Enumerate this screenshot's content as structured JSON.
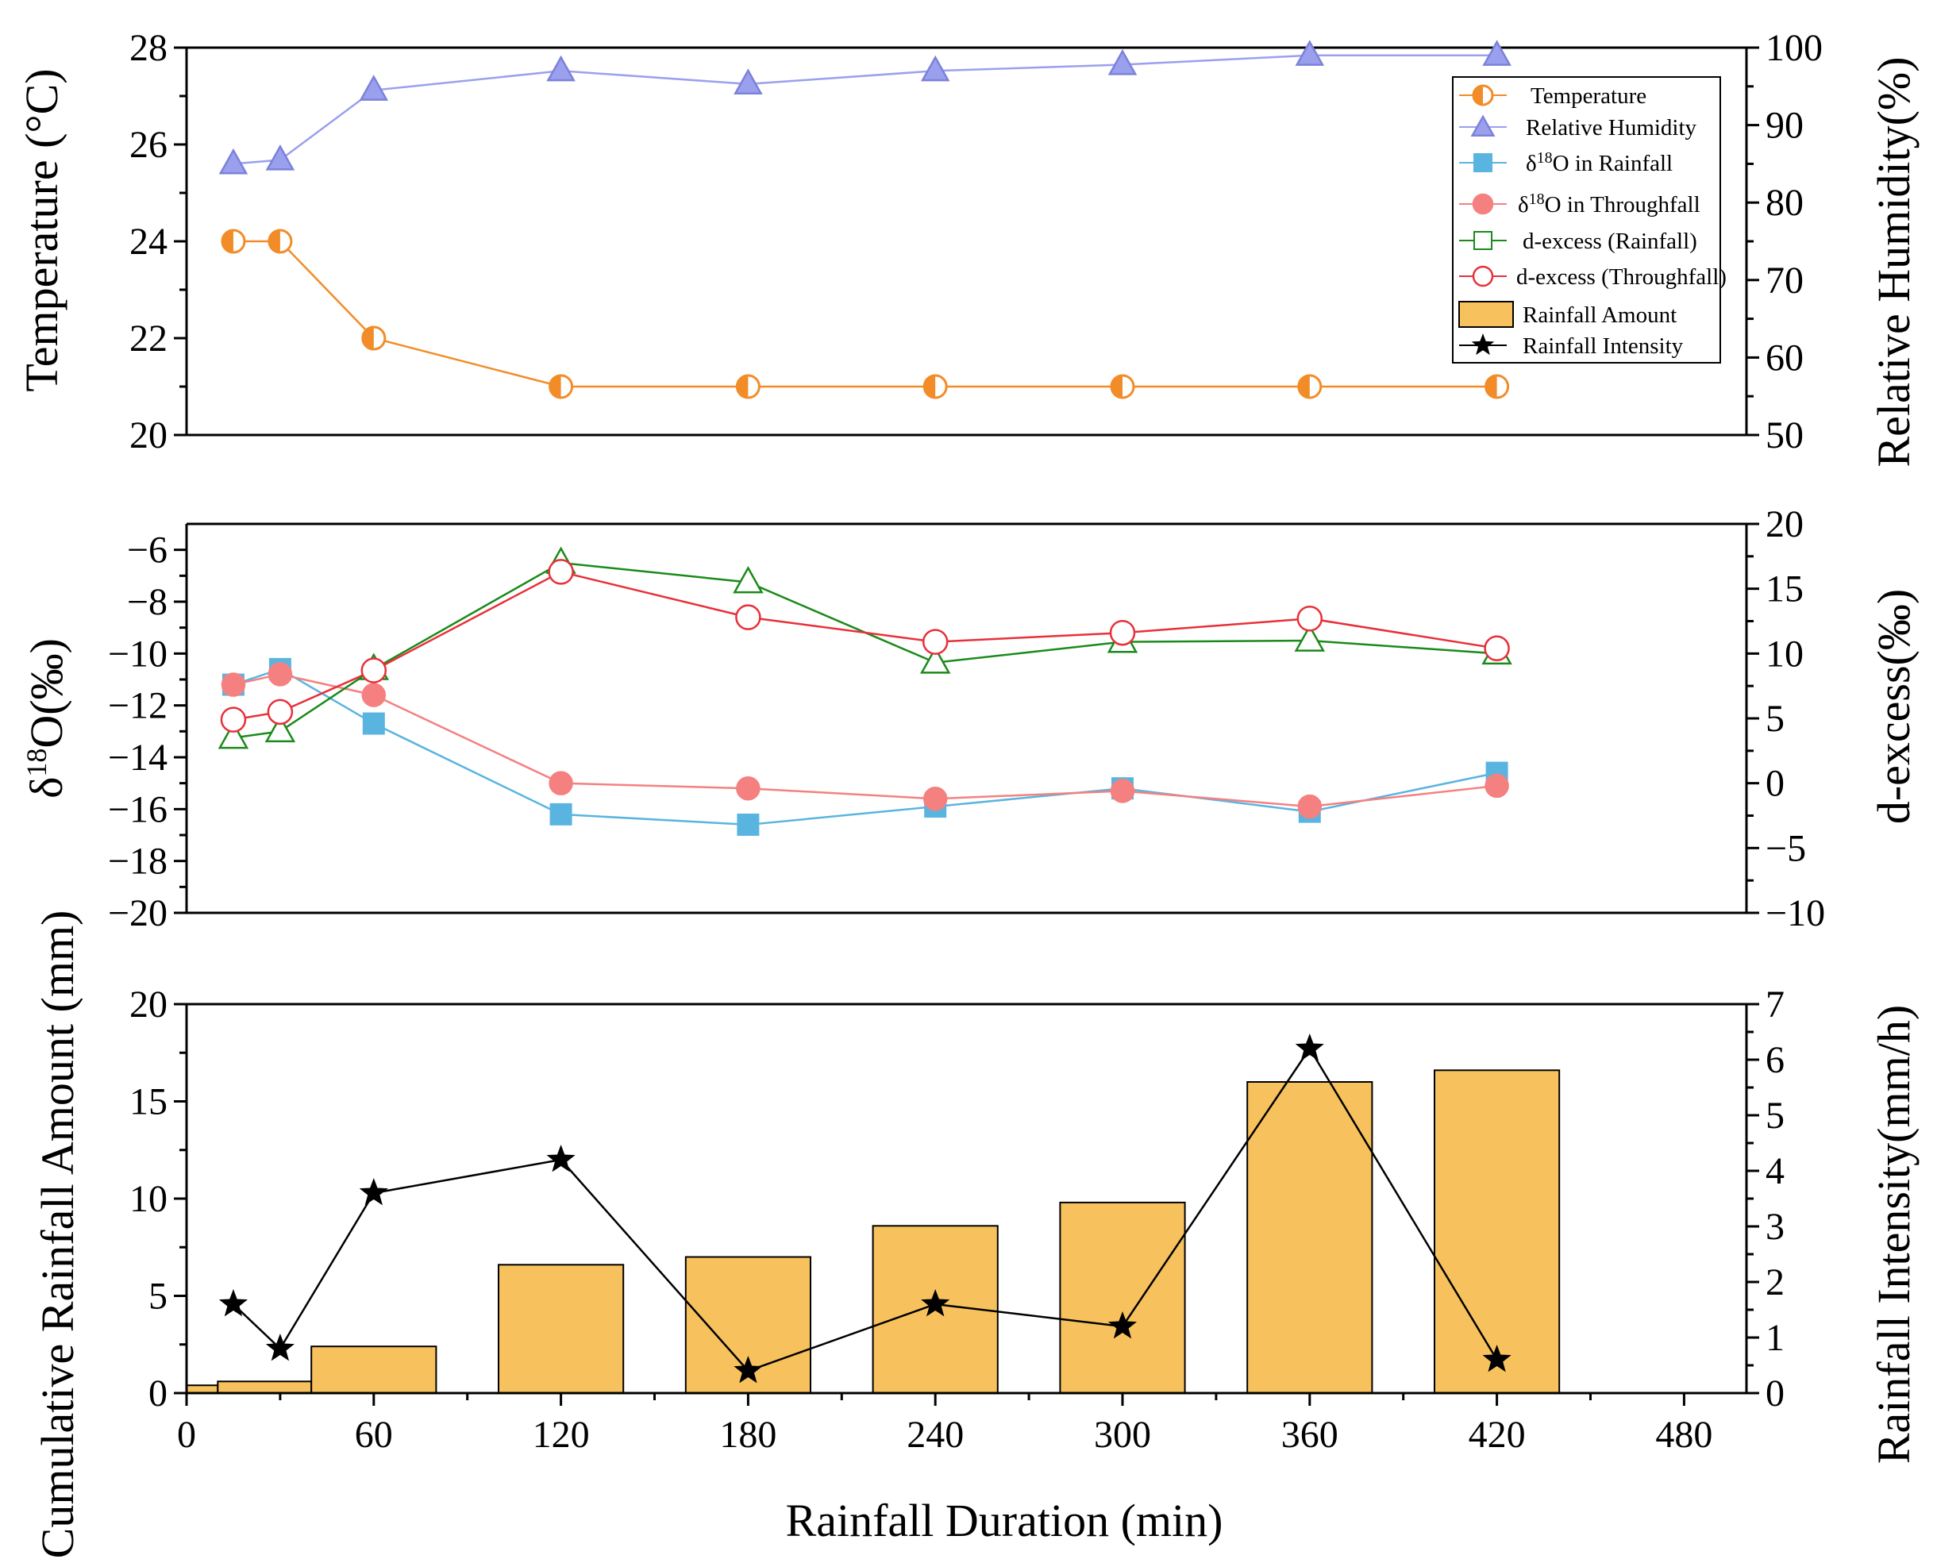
{
  "colors": {
    "temperature": "#f28c28",
    "humidity": "#9aa0ee",
    "d18o_rain": "#5ab4e0",
    "d18o_through": "#f58080",
    "dx_rain": "#1a8a1a",
    "dx_through": "#e8303a",
    "bar_fill": "#f7c25e",
    "bar_stroke": "#000000",
    "intensity": "#000000"
  },
  "legend": {
    "temperature": "Temperature",
    "humidity": "Relative Humidity",
    "d18o_rain_pre": "δ",
    "d18o_rain_sup": "18",
    "d18o_rain_post": "O in Rainfall",
    "d18o_through_pre": "δ",
    "d18o_through_sup": "18",
    "d18o_through_post": "O in Throughfall",
    "dx_rain": "d-excess (Rainfall)",
    "dx_through": "d-excess (Throughfall)",
    "rain_amount": "Rainfall Amount",
    "intensity": "Rainfall Intensity"
  },
  "chart_data": [
    {
      "panel": "top",
      "type": "line",
      "x": [
        15,
        30,
        60,
        120,
        180,
        240,
        300,
        360,
        420
      ],
      "xlim": [
        0,
        500
      ],
      "ylabel_left": "Temperature (°C)",
      "ylabel_right": "Relative Humidity(%)",
      "ylim_left": [
        20,
        28
      ],
      "ylim_right": [
        50,
        100
      ],
      "yticks_left": [
        20,
        22,
        24,
        26,
        28
      ],
      "yticks_right": [
        50,
        60,
        70,
        80,
        90,
        100
      ],
      "series": [
        {
          "name": "Temperature",
          "axis": "left",
          "values": [
            24,
            24,
            22,
            21,
            21,
            21,
            21,
            21,
            21
          ]
        },
        {
          "name": "Relative Humidity",
          "axis": "right",
          "values": [
            85,
            85.5,
            94.5,
            97,
            95.3,
            97,
            97.8,
            99,
            99
          ]
        }
      ]
    },
    {
      "panel": "middle",
      "type": "line",
      "x": [
        15,
        30,
        60,
        120,
        180,
        240,
        300,
        360,
        420
      ],
      "xlim": [
        0,
        500
      ],
      "ylabel_left_pre": "δ",
      "ylabel_left_sup": "18",
      "ylabel_left_post": "O(‰)",
      "ylabel_right": "d-excess(‰)",
      "ylim_left": [
        -20,
        -5
      ],
      "ylim_right": [
        -10,
        20
      ],
      "yticks_left": [
        -20,
        -18,
        -16,
        -14,
        -12,
        -10,
        -8,
        -6
      ],
      "yticks_left_labels": [
        "−20",
        "−18",
        "−16",
        "−14",
        "−12",
        "−10",
        "−8",
        "−6"
      ],
      "yticks_right": [
        -10,
        -5,
        0,
        5,
        10,
        15,
        20
      ],
      "yticks_right_labels": [
        "−10",
        "−5",
        "0",
        "5",
        "10",
        "15",
        "20"
      ],
      "series": [
        {
          "name": "δ18O in Rainfall",
          "axis": "left",
          "values": [
            -11.2,
            -10.6,
            -12.7,
            -16.2,
            -16.6,
            -15.9,
            -15.2,
            -16.1,
            -14.6
          ]
        },
        {
          "name": "δ18O in Throughfall",
          "axis": "left",
          "values": [
            -11.2,
            -10.8,
            -11.6,
            -15.0,
            -15.2,
            -15.6,
            -15.3,
            -15.9,
            -15.1
          ]
        },
        {
          "name": "d-excess (Rainfall)",
          "axis": "right",
          "values": [
            3.5,
            4.0,
            8.8,
            17.0,
            15.5,
            9.3,
            10.9,
            11.0,
            10.0
          ]
        },
        {
          "name": "d-excess (Throughfall)",
          "axis": "right",
          "values": [
            4.9,
            5.5,
            8.7,
            16.3,
            12.8,
            10.9,
            11.6,
            12.7,
            10.4
          ]
        }
      ]
    },
    {
      "panel": "bottom",
      "type": "bar",
      "x": [
        15,
        30,
        60,
        120,
        180,
        240,
        300,
        360,
        420
      ],
      "xlim": [
        0,
        500
      ],
      "xlabel": "Rainfall Duration (min)",
      "xticks": [
        0,
        60,
        120,
        180,
        240,
        300,
        360,
        420,
        480
      ],
      "ylabel_left": "Cumulative Rainfall Amount (mm)",
      "ylabel_right": "Rainfall Intensity(mm/h)",
      "ylim_left": [
        0,
        20
      ],
      "ylim_right": [
        0,
        7
      ],
      "yticks_left": [
        0,
        5,
        10,
        15,
        20
      ],
      "yticks_right": [
        0,
        1,
        2,
        3,
        4,
        5,
        6,
        7
      ],
      "series": [
        {
          "name": "Rainfall Amount",
          "axis": "left",
          "type": "bar",
          "bars": [
            {
              "x0": 0,
              "x1": 10,
              "value": 0.4
            },
            {
              "x0": 10,
              "x1": 40,
              "value": 0.6
            },
            {
              "x0": 40,
              "x1": 80,
              "value": 2.4
            },
            {
              "x0": 100,
              "x1": 140,
              "value": 6.6
            },
            {
              "x0": 160,
              "x1": 200,
              "value": 7.0
            },
            {
              "x0": 220,
              "x1": 260,
              "value": 8.6
            },
            {
              "x0": 280,
              "x1": 320,
              "value": 9.8
            },
            {
              "x0": 340,
              "x1": 380,
              "value": 16.0
            },
            {
              "x0": 400,
              "x1": 440,
              "value": 16.6
            }
          ]
        },
        {
          "name": "Rainfall Intensity",
          "axis": "right",
          "type": "line",
          "values": [
            1.6,
            0.8,
            3.6,
            4.2,
            0.4,
            1.6,
            1.2,
            6.2,
            0.6
          ]
        }
      ]
    }
  ]
}
